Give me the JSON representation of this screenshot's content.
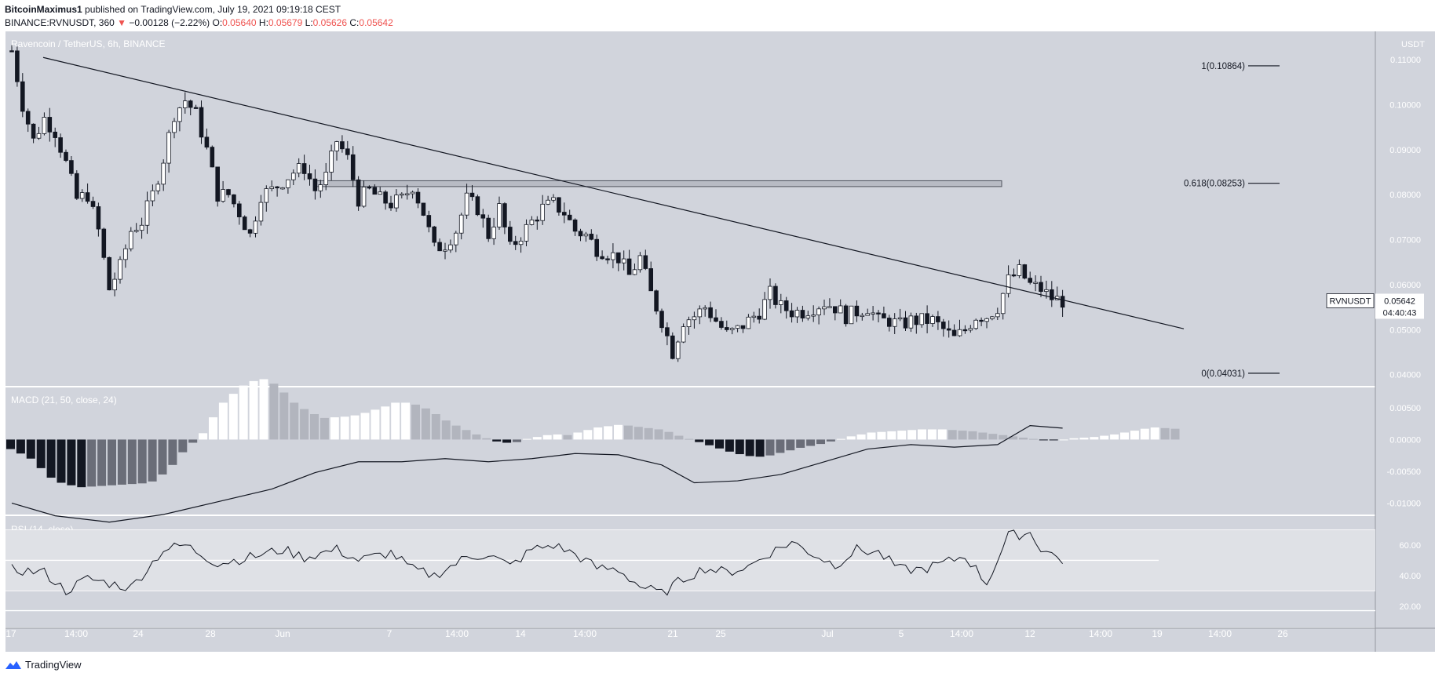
{
  "header": {
    "author": "BitcoinMaximus1",
    "published": "published on TradingView.com, July 19, 2021 09:19:18 CEST",
    "symbol": "BINANCE:RVNUSDT, 360",
    "change_arrow": "▼",
    "change": "−0.00128 (−2.22%)",
    "o_label": "O:",
    "o_val": "0.05640",
    "h_label": "H:",
    "h_val": "0.05679",
    "l_label": "L:",
    "l_val": "0.05626",
    "c_label": "C:",
    "c_val": "0.05642"
  },
  "footer": {
    "brand": "TradingView",
    "logo_icon": "tradingview-logo-icon"
  },
  "colors": {
    "pane_bg": "#d1d4dc",
    "candle_up": "#ffffff",
    "candle_down": "#131722",
    "accent_down": "#ef5350"
  },
  "chart_data": [
    {
      "type": "candlestick",
      "pane": "price",
      "title": "Ravencoin / TetherUS, 6h, BINANCE",
      "axis_unit": "USDT",
      "x_tick_labels": [
        "17",
        "14:00",
        "24",
        "28",
        "Jun",
        "7",
        "14:00",
        "14",
        "14:00",
        "21",
        "25",
        "Jul",
        "5",
        "14:00",
        "12",
        "14:00",
        "19",
        "14:00",
        "26"
      ],
      "y_tick_labels": [
        "0.11000",
        "0.10000",
        "0.09000",
        "0.08000",
        "0.07000",
        "0.06000",
        "0.05000",
        "0.04000"
      ],
      "ylim": [
        0.0375,
        0.1163
      ],
      "last_price_label": "RVNUSDT",
      "last_price": "0.05642",
      "countdown": "04:40:43",
      "fib_levels": [
        {
          "label": "1(0.10864)",
          "value": 0.10864
        },
        {
          "label": "0.618(0.08253)",
          "value": 0.08253
        },
        {
          "label": "0(0.04031)",
          "value": 0.04031
        }
      ],
      "resistance_zone": [
        0.0818,
        0.0831
      ],
      "trendline": {
        "from": [
          "May 17",
          0.1105
        ],
        "to": [
          "Jul 20",
          0.0502
        ]
      },
      "close_path": [
        [
          0,
          0.112
        ],
        [
          2,
          0.1
        ],
        [
          4,
          0.092
        ],
        [
          6,
          0.097
        ],
        [
          8,
          0.094
        ],
        [
          10,
          0.087
        ],
        [
          12,
          0.079
        ],
        [
          14,
          0.08
        ],
        [
          16,
          0.072
        ],
        [
          18,
          0.059
        ],
        [
          20,
          0.064
        ],
        [
          22,
          0.072
        ],
        [
          24,
          0.074
        ],
        [
          26,
          0.08
        ],
        [
          28,
          0.088
        ],
        [
          30,
          0.098
        ],
        [
          32,
          0.101
        ],
        [
          34,
          0.098
        ],
        [
          36,
          0.09
        ],
        [
          38,
          0.08
        ],
        [
          40,
          0.08
        ],
        [
          42,
          0.076
        ],
        [
          44,
          0.071
        ],
        [
          46,
          0.08
        ],
        [
          48,
          0.081
        ],
        [
          50,
          0.083
        ],
        [
          52,
          0.085
        ],
        [
          54,
          0.086
        ],
        [
          56,
          0.081
        ],
        [
          58,
          0.084
        ],
        [
          60,
          0.092
        ],
        [
          62,
          0.088
        ],
        [
          64,
          0.079
        ],
        [
          66,
          0.081
        ],
        [
          68,
          0.079
        ],
        [
          70,
          0.078
        ],
        [
          72,
          0.079
        ],
        [
          74,
          0.082
        ],
        [
          76,
          0.076
        ],
        [
          78,
          0.068
        ],
        [
          80,
          0.069
        ],
        [
          82,
          0.072
        ],
        [
          84,
          0.079
        ],
        [
          86,
          0.077
        ],
        [
          88,
          0.071
        ],
        [
          90,
          0.077
        ],
        [
          92,
          0.068
        ],
        [
          94,
          0.071
        ],
        [
          96,
          0.074
        ],
        [
          98,
          0.077
        ],
        [
          100,
          0.078
        ],
        [
          102,
          0.076
        ],
        [
          104,
          0.072
        ],
        [
          106,
          0.071
        ],
        [
          108,
          0.068
        ],
        [
          110,
          0.067
        ],
        [
          112,
          0.066
        ],
        [
          114,
          0.062
        ],
        [
          116,
          0.066
        ],
        [
          118,
          0.058
        ],
        [
          120,
          0.052
        ],
        [
          122,
          0.045
        ],
        [
          124,
          0.052
        ],
        [
          126,
          0.053
        ],
        [
          128,
          0.055
        ],
        [
          130,
          0.052
        ],
        [
          132,
          0.049
        ],
        [
          134,
          0.05
        ],
        [
          136,
          0.052
        ],
        [
          138,
          0.054
        ],
        [
          140,
          0.058
        ],
        [
          142,
          0.055
        ],
        [
          144,
          0.054
        ],
        [
          146,
          0.054
        ],
        [
          148,
          0.055
        ],
        [
          150,
          0.056
        ],
        [
          152,
          0.055
        ],
        [
          154,
          0.053
        ],
        [
          156,
          0.054
        ],
        [
          158,
          0.055
        ],
        [
          160,
          0.052
        ],
        [
          162,
          0.052
        ],
        [
          164,
          0.051
        ],
        [
          166,
          0.052
        ],
        [
          168,
          0.052
        ],
        [
          170,
          0.052
        ],
        [
          172,
          0.05
        ],
        [
          174,
          0.048
        ],
        [
          176,
          0.05
        ],
        [
          178,
          0.053
        ],
        [
          180,
          0.053
        ],
        [
          182,
          0.055
        ],
        [
          184,
          0.061
        ],
        [
          186,
          0.063
        ],
        [
          188,
          0.06
        ],
        [
          190,
          0.059
        ],
        [
          192,
          0.057
        ],
        [
          194,
          0.0564
        ]
      ]
    },
    {
      "type": "macd",
      "pane": "macd",
      "title": "MACD (21, 50, close, 24)",
      "y_tick_labels": [
        "0.00500",
        "0.00000",
        "-0.00500",
        "-0.01000"
      ],
      "ylim": [
        -0.0118,
        0.0082
      ],
      "histogram": [
        -0.0015,
        -0.0022,
        -0.003,
        -0.0045,
        -0.006,
        -0.0068,
        -0.0072,
        -0.0075,
        -0.0074,
        -0.0073,
        -0.0072,
        -0.0071,
        -0.007,
        -0.0069,
        -0.0066,
        -0.0055,
        -0.004,
        -0.002,
        -0.0005,
        0.001,
        0.0035,
        0.0058,
        0.0072,
        0.0085,
        0.0092,
        0.0095,
        0.0088,
        0.0074,
        0.0058,
        0.0048,
        0.004,
        0.0034,
        0.0035,
        0.0036,
        0.0038,
        0.0042,
        0.0047,
        0.0052,
        0.0058,
        0.0058,
        0.0055,
        0.0049,
        0.004,
        0.003,
        0.0022,
        0.0015,
        0.0008,
        0.0002,
        -0.0003,
        -0.0005,
        -0.0004,
        0.0001,
        0.0004,
        0.0007,
        0.0008,
        0.0007,
        0.0011,
        0.0015,
        0.0019,
        0.0021,
        0.0023,
        0.0022,
        0.002,
        0.0018,
        0.0016,
        0.0012,
        0.0006,
        0.0001,
        -0.0004,
        -0.0009,
        -0.0014,
        -0.0019,
        -0.0023,
        -0.0026,
        -0.0027,
        -0.0025,
        -0.0021,
        -0.0017,
        -0.0013,
        -0.001,
        -0.0007,
        -0.0003,
        0.0001,
        0.0005,
        0.0008,
        0.0011,
        0.0012,
        0.0013,
        0.0014,
        0.0015,
        0.0016,
        0.0016,
        0.0016,
        0.0015,
        0.0014,
        0.0013,
        0.0011,
        0.0009,
        0.0007,
        0.0005,
        0.0003,
        0.0001,
        -0.0001,
        -0.0001,
        0.0,
        0.0002,
        0.0003,
        0.0004,
        0.0006,
        0.0008,
        0.0011,
        0.0014,
        0.0017,
        0.0019,
        0.0018,
        0.0017
      ],
      "macd_path": [
        [
          0,
          -0.01
        ],
        [
          8,
          -0.012
        ],
        [
          18,
          -0.013
        ],
        [
          28,
          -0.0118
        ],
        [
          38,
          -0.0098
        ],
        [
          48,
          -0.0078
        ],
        [
          56,
          -0.0052
        ],
        [
          64,
          -0.0035
        ],
        [
          72,
          -0.0035
        ],
        [
          80,
          -0.003
        ],
        [
          88,
          -0.0035
        ],
        [
          96,
          -0.003
        ],
        [
          104,
          -0.0022
        ],
        [
          112,
          -0.0024
        ],
        [
          120,
          -0.004
        ],
        [
          126,
          -0.0068
        ],
        [
          134,
          -0.0065
        ],
        [
          142,
          -0.0055
        ],
        [
          150,
          -0.0035
        ],
        [
          158,
          -0.0015
        ],
        [
          166,
          -0.0008
        ],
        [
          174,
          -0.0012
        ],
        [
          182,
          -0.0008
        ],
        [
          188,
          0.0022
        ],
        [
          194,
          0.0018
        ]
      ]
    },
    {
      "type": "line",
      "pane": "rsi",
      "title": "RSI (14, close)",
      "y_tick_labels": [
        "60.00",
        "40.00",
        "20.00"
      ],
      "ylim": [
        6,
        79
      ],
      "band": [
        30,
        70
      ],
      "midline": 50,
      "rsi": [
        44,
        42,
        46,
        40,
        35,
        30,
        38,
        44,
        40,
        45,
        34,
        32,
        36,
        42,
        48,
        55,
        60,
        57,
        52,
        46,
        50,
        48,
        44,
        50,
        56,
        60,
        56,
        48,
        52,
        55,
        60,
        54,
        50,
        57,
        52,
        44,
        40,
        46,
        50,
        41,
        36,
        46,
        55,
        52,
        60,
        47,
        45,
        50,
        57,
        60,
        54,
        48,
        45,
        43,
        40,
        44,
        34,
        28,
        30,
        38,
        46,
        52,
        60,
        57,
        53,
        48,
        55,
        44,
        52,
        60,
        55,
        48,
        47,
        44,
        36,
        36,
        38,
        35,
        46,
        52,
        44,
        46,
        50,
        56,
        52,
        36,
        44,
        47,
        46,
        50,
        55,
        61,
        63,
        58,
        52
      ],
      "rsi_path": [
        [
          0,
          44
        ],
        [
          6,
          42
        ],
        [
          10,
          30
        ],
        [
          14,
          38
        ],
        [
          22,
          32
        ],
        [
          28,
          57
        ],
        [
          32,
          60
        ],
        [
          38,
          48
        ],
        [
          44,
          52
        ],
        [
          50,
          57
        ],
        [
          54,
          52
        ],
        [
          60,
          57
        ],
        [
          64,
          50
        ],
        [
          70,
          55
        ],
        [
          74,
          44
        ],
        [
          78,
          40
        ],
        [
          84,
          52
        ],
        [
          88,
          54
        ],
        [
          92,
          46
        ],
        [
          96,
          57
        ],
        [
          100,
          60
        ],
        [
          104,
          54
        ],
        [
          108,
          45
        ],
        [
          112,
          44
        ],
        [
          116,
          33
        ],
        [
          120,
          28
        ],
        [
          124,
          38
        ],
        [
          128,
          45
        ],
        [
          132,
          42
        ],
        [
          136,
          46
        ],
        [
          140,
          55
        ],
        [
          144,
          62
        ],
        [
          148,
          54
        ],
        [
          152,
          47
        ],
        [
          156,
          57
        ],
        [
          160,
          55
        ],
        [
          164,
          44
        ],
        [
          168,
          44
        ],
        [
          172,
          48
        ],
        [
          176,
          53
        ],
        [
          180,
          35
        ],
        [
          184,
          66
        ],
        [
          188,
          68
        ],
        [
          190,
          58
        ],
        [
          194,
          50
        ]
      ]
    }
  ]
}
